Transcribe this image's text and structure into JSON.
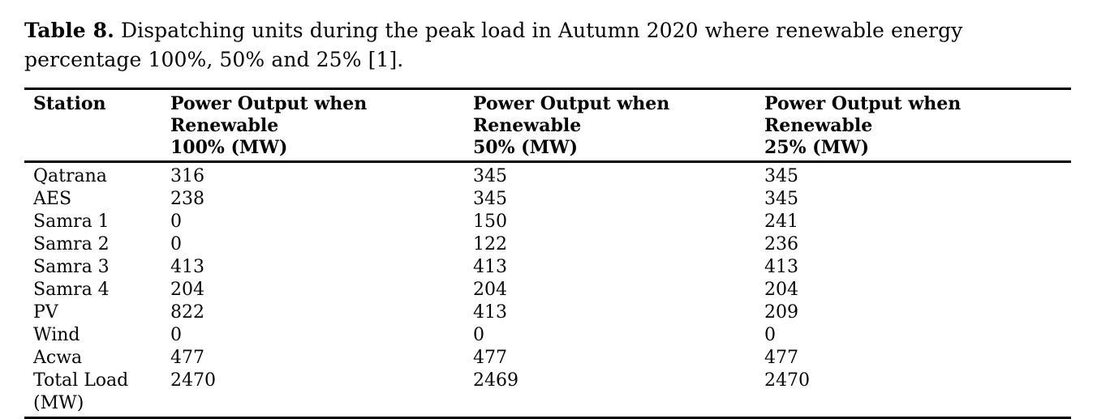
{
  "caption": {
    "label": "Table 8.",
    "text": " Dispatching units during the peak load in Autumn 2020 where renewable energy percentage 100%, 50% and 25% [1]."
  },
  "table": {
    "headers": {
      "station": "Station",
      "cols": [
        {
          "line1": "Power Output when Renewable",
          "line2": "100% (MW)"
        },
        {
          "line1": "Power Output when Renewable",
          "line2": "50% (MW)"
        },
        {
          "line1": "Power Output when Renewable",
          "line2": "25% (MW)"
        }
      ]
    },
    "rows": [
      {
        "station": "Qatrana",
        "values": [
          "316",
          "345",
          "345"
        ]
      },
      {
        "station": "AES",
        "values": [
          "238",
          "345",
          "345"
        ]
      },
      {
        "station": "Samra 1",
        "values": [
          "0",
          "150",
          "241"
        ]
      },
      {
        "station": "Samra 2",
        "values": [
          "0",
          "122",
          "236"
        ]
      },
      {
        "station": "Samra 3",
        "values": [
          "413",
          "413",
          "413"
        ]
      },
      {
        "station": "Samra 4",
        "values": [
          "204",
          "204",
          "204"
        ]
      },
      {
        "station": "PV",
        "values": [
          "822",
          "413",
          "209"
        ]
      },
      {
        "station": "Wind",
        "values": [
          "0",
          "0",
          "0"
        ]
      },
      {
        "station": "Acwa",
        "values": [
          "477",
          "477",
          "477"
        ]
      },
      {
        "station": "Total Load (MW)",
        "values": [
          "2470",
          "2469",
          "2470"
        ]
      }
    ]
  },
  "chart_data": {
    "type": "table",
    "title": "Table 8. Dispatching units during the peak load in Autumn 2020 where renewable energy percentage 100%, 50% and 25% [1].",
    "columns": [
      "Station",
      "Power Output when Renewable 100% (MW)",
      "Power Output when Renewable 50% (MW)",
      "Power Output when Renewable 25% (MW)"
    ],
    "categories": [
      "Qatrana",
      "AES",
      "Samra 1",
      "Samra 2",
      "Samra 3",
      "Samra 4",
      "PV",
      "Wind",
      "Acwa",
      "Total Load (MW)"
    ],
    "series": [
      {
        "name": "Power Output when Renewable 100% (MW)",
        "values": [
          316,
          238,
          0,
          0,
          413,
          204,
          822,
          0,
          477,
          2470
        ]
      },
      {
        "name": "Power Output when Renewable 50% (MW)",
        "values": [
          345,
          345,
          150,
          122,
          413,
          204,
          413,
          0,
          477,
          2469
        ]
      },
      {
        "name": "Power Output when Renewable 25% (MW)",
        "values": [
          345,
          345,
          241,
          236,
          413,
          204,
          209,
          0,
          477,
          2470
        ]
      }
    ],
    "colors": {
      "text": "#050505",
      "rule": "#000000",
      "background": "#ffffff"
    }
  }
}
